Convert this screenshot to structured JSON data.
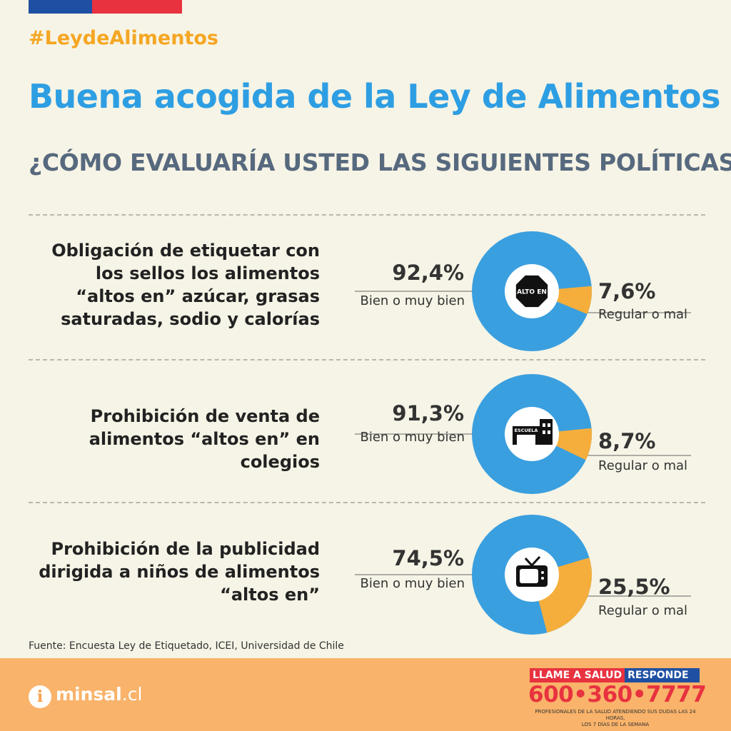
{
  "header": {
    "hashtag": "#LeydeAlimentos",
    "title": "Buena acogida de la Ley de Alimentos",
    "subtitle": "¿CÓMO EVALUARÍA USTED LAS SIGUIENTES POLÍTICAS?"
  },
  "colors": {
    "good": "#3a9fdf",
    "bad": "#f5ae3c",
    "title": "#2e9ee3",
    "subtitle": "#57697e",
    "accent": "#f5a623"
  },
  "chart_data": [
    {
      "type": "pie",
      "question": [
        "Obligación de etiquetar con",
        "los sellos los alimentos",
        "“altos en” azúcar, grasas",
        "saturadas, sodio y calorías"
      ],
      "icon": "alto-en-stop-sign-icon",
      "icon_text": "ALTO EN",
      "good_label": "92,4%",
      "good_caption": "Bien o muy bien",
      "good_value": 92.4,
      "bad_label": "7,6%",
      "bad_caption": "Regular o mal",
      "bad_value": 7.6
    },
    {
      "type": "pie",
      "question": [
        "Prohibición de venta de",
        "alimentos “altos en” en",
        "colegios"
      ],
      "icon": "school-building-icon",
      "icon_text": "ESCUELA",
      "good_label": "91,3%",
      "good_caption": "Bien o muy bien",
      "good_value": 91.3,
      "bad_label": "8,7%",
      "bad_caption": "Regular o mal",
      "bad_value": 8.7
    },
    {
      "type": "pie",
      "question": [
        "Prohibición de la publicidad",
        "dirigida a niños de alimentos",
        "“altos en”"
      ],
      "icon": "television-icon",
      "icon_text": "",
      "good_label": "74,5%",
      "good_caption": "Bien o muy bien",
      "good_value": 74.5,
      "bad_label": "25,5%",
      "bad_caption": "Regular o mal",
      "bad_value": 25.5
    }
  ],
  "footer": {
    "source": "Fuente: Encuesta Ley de Etiquetado, ICEI, Universidad de Chile",
    "brand_main": "minsal",
    "brand_domain": ".cl",
    "info_glyph": "i",
    "hotline_a": "LLAME A SALUD",
    "hotline_b": "RESPONDE",
    "phone": "600•360•7777",
    "hotline_note_1": "PROFESIONALES DE LA SALUD ATENDIENDO SUS DUDAS LAS 24 HORAS,",
    "hotline_note_2": "LOS 7 DÍAS DE LA SEMANA"
  }
}
